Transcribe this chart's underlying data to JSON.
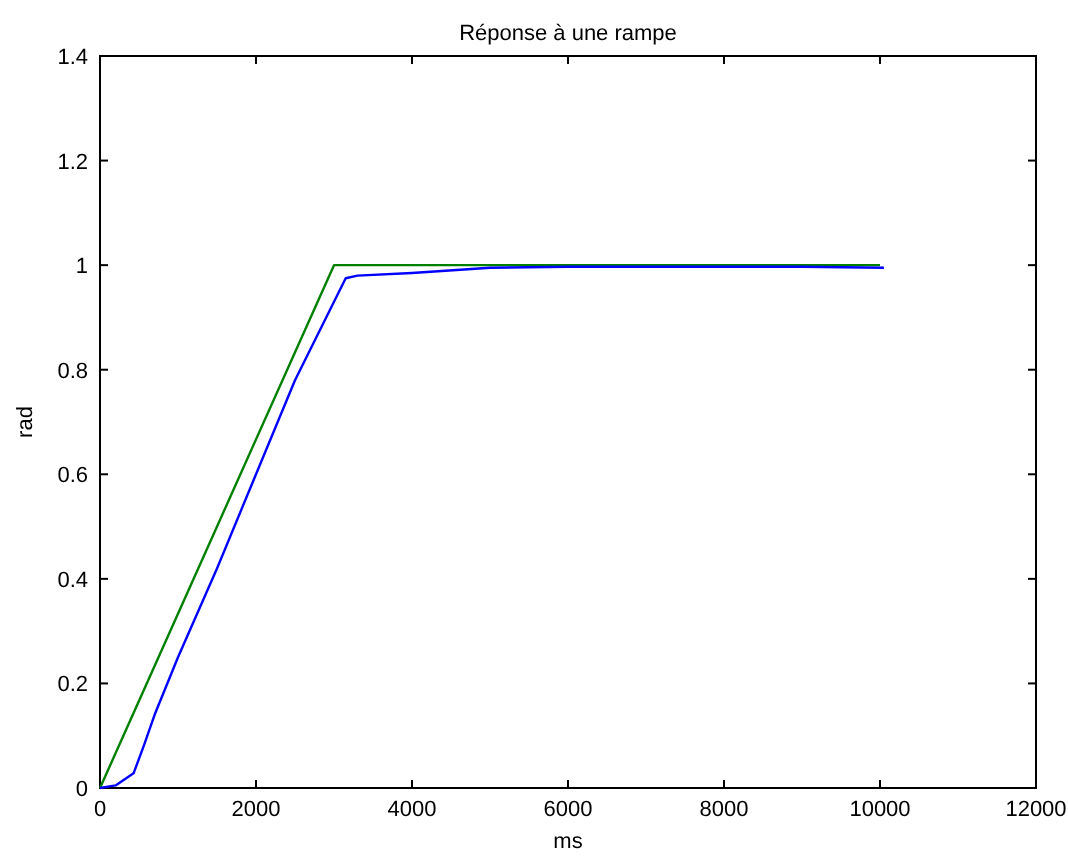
{
  "chart_data": {
    "type": "line",
    "title": "Réponse à une rampe",
    "xlabel": "ms",
    "ylabel": "rad",
    "xlim": [
      0,
      12000
    ],
    "ylim": [
      0,
      1.4
    ],
    "xticks": [
      0,
      2000,
      4000,
      6000,
      8000,
      10000,
      12000
    ],
    "yticks": [
      0,
      0.2,
      0.4,
      0.6,
      0.8,
      1,
      1.2,
      1.4
    ],
    "grid": false,
    "line_style": "solid",
    "marker": "none",
    "series": [
      {
        "color": "#008000",
        "x": [
          0,
          3000,
          10000
        ],
        "values": [
          0,
          1,
          1
        ]
      },
      {
        "color": "#0000ff",
        "x": [
          0,
          200,
          430,
          560,
          700,
          1000,
          1500,
          2000,
          2500,
          3000,
          3150,
          3300,
          4000,
          5000,
          6000,
          7000,
          8000,
          9000,
          10050
        ],
        "values": [
          0,
          0.005,
          0.028,
          0.08,
          0.14,
          0.25,
          0.42,
          0.6,
          0.78,
          0.93,
          0.975,
          0.98,
          0.985,
          0.995,
          0.997,
          0.997,
          0.997,
          0.997,
          0.995
        ]
      }
    ]
  }
}
